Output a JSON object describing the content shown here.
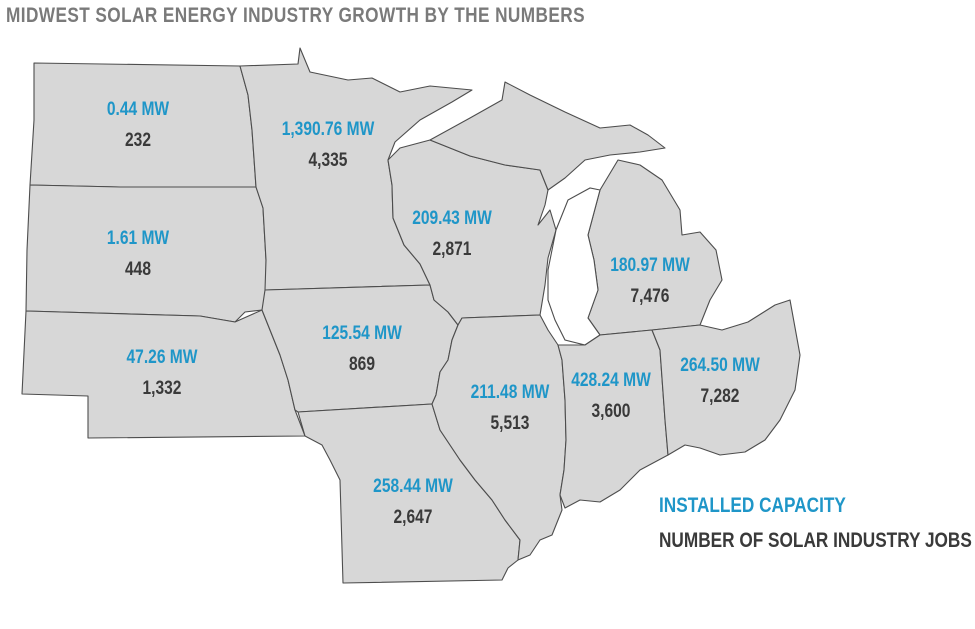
{
  "title": "MIDWEST SOLAR ENERGY INDUSTRY GROWTH BY THE NUMBERS",
  "colors": {
    "capacity": "#1f96c8",
    "jobs": "#3a3a3a",
    "state_fill": "#d7d7d7",
    "border": "#4d4d4d"
  },
  "states": [
    {
      "id": "north-dakota",
      "capacity": "0.44 MW",
      "jobs": "232"
    },
    {
      "id": "south-dakota",
      "capacity": "1.61 MW",
      "jobs": "448"
    },
    {
      "id": "nebraska",
      "capacity": "47.26 MW",
      "jobs": "1,332"
    },
    {
      "id": "minnesota",
      "capacity": "1,390.76 MW",
      "jobs": "4,335"
    },
    {
      "id": "iowa",
      "capacity": "125.54 MW",
      "jobs": "869"
    },
    {
      "id": "missouri",
      "capacity": "258.44 MW",
      "jobs": "2,647"
    },
    {
      "id": "wisconsin",
      "capacity": "209.43 MW",
      "jobs": "2,871"
    },
    {
      "id": "illinois",
      "capacity": "211.48 MW",
      "jobs": "5,513"
    },
    {
      "id": "michigan",
      "capacity": "180.97 MW",
      "jobs": "7,476"
    },
    {
      "id": "indiana",
      "capacity": "428.24 MW",
      "jobs": "3,600"
    },
    {
      "id": "ohio",
      "capacity": "264.50 MW",
      "jobs": "7,282"
    }
  ],
  "legend": {
    "capacity_label": "INSTALLED CAPACITY",
    "jobs_label": "NUMBER OF SOLAR INDUSTRY JOBS"
  }
}
